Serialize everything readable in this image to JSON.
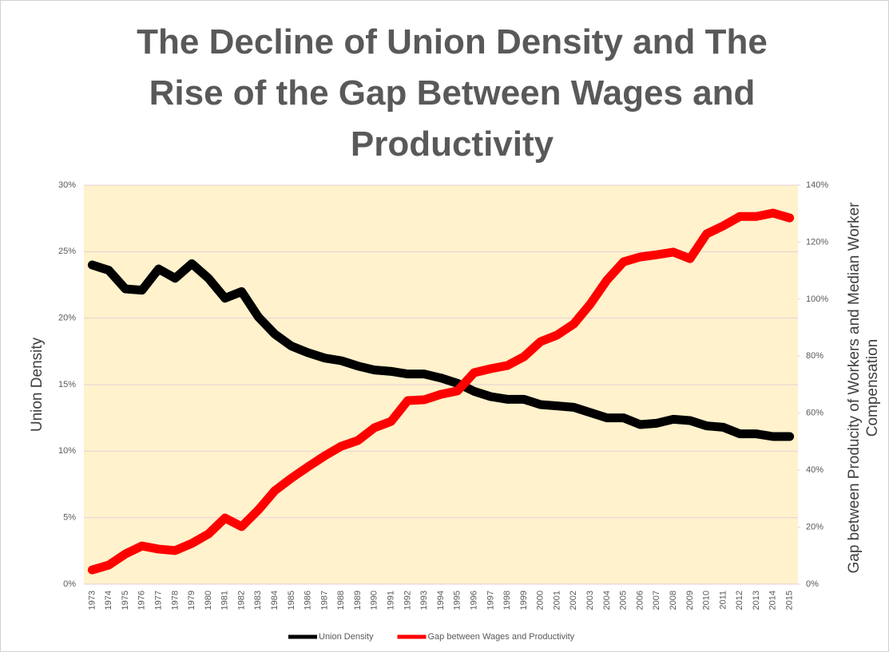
{
  "chart_data": {
    "type": "line",
    "title": "The Decline of Union Density and The Rise of the Gap Between Wages and Productivity",
    "y_label": "Union Density",
    "y2_label": "Gap between Producity of Workers and Median Worker Compensation",
    "categories": [
      "1973",
      "1974",
      "1975",
      "1976",
      "1977",
      "1978",
      "1979",
      "1980",
      "1981",
      "1982",
      "1983",
      "1984",
      "1985",
      "1986",
      "1987",
      "1988",
      "1989",
      "1990",
      "1991",
      "1992",
      "1993",
      "1994",
      "1995",
      "1996",
      "1997",
      "1998",
      "1999",
      "2000",
      "2001",
      "2002",
      "2003",
      "2004",
      "2005",
      "2006",
      "2007",
      "2008",
      "2009",
      "2010",
      "2011",
      "2012",
      "2013",
      "2014",
      "2015"
    ],
    "series": [
      {
        "name": "Union Density",
        "color": "#000000",
        "axis": "y",
        "values": [
          24.0,
          23.6,
          22.2,
          22.1,
          23.7,
          23.0,
          24.1,
          23.0,
          21.5,
          22.0,
          20.1,
          18.8,
          17.9,
          17.4,
          17.0,
          16.8,
          16.4,
          16.1,
          16.0,
          15.8,
          15.8,
          15.5,
          15.1,
          14.5,
          14.1,
          13.9,
          13.9,
          13.5,
          13.4,
          13.3,
          12.9,
          12.5,
          12.5,
          12.0,
          12.1,
          12.4,
          12.3,
          11.9,
          11.8,
          11.3,
          11.3,
          11.1,
          11.1
        ]
      },
      {
        "name": "Gap between Wages and Productivity",
        "color": "#ff0000",
        "axis": "y2",
        "values": [
          5.0,
          6.7,
          10.6,
          13.4,
          12.3,
          11.8,
          14.3,
          17.6,
          23.2,
          20.2,
          26.0,
          32.8,
          37.2,
          41.2,
          45.0,
          48.4,
          50.4,
          54.9,
          57.1,
          64.4,
          64.7,
          66.6,
          67.8,
          74.2,
          75.6,
          76.7,
          79.8,
          85.1,
          87.4,
          91.3,
          98.3,
          106.7,
          113.1,
          114.8,
          115.6,
          116.5,
          114.2,
          122.9,
          125.7,
          129.0,
          129.0,
          130.2,
          128.5
        ]
      }
    ],
    "ylim": [
      0,
      30
    ],
    "yticks": [
      {
        "value": 0,
        "label": "0%"
      },
      {
        "value": 5,
        "label": "5%"
      },
      {
        "value": 10,
        "label": "10%"
      },
      {
        "value": 15,
        "label": "15%"
      },
      {
        "value": 20,
        "label": "20%"
      },
      {
        "value": 25,
        "label": "25%"
      },
      {
        "value": 30,
        "label": "30%"
      }
    ],
    "y2lim": [
      0,
      140
    ],
    "y2ticks": [
      {
        "value": 0,
        "label": "0%"
      },
      {
        "value": 20,
        "label": "20%"
      },
      {
        "value": 40,
        "label": "40%"
      },
      {
        "value": 60,
        "label": "60%"
      },
      {
        "value": 80,
        "label": "80%"
      },
      {
        "value": 100,
        "label": "100%"
      },
      {
        "value": 120,
        "label": "120%"
      },
      {
        "value": 140,
        "label": "140%"
      }
    ],
    "grid": true,
    "legend": "bottom"
  }
}
